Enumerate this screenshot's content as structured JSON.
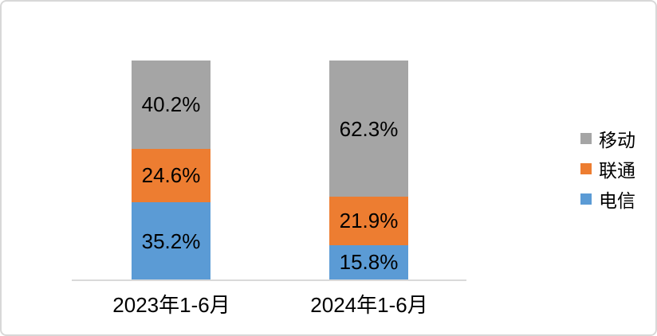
{
  "chart_data": {
    "type": "bar",
    "stacked": true,
    "title": "",
    "xlabel": "",
    "ylabel": "",
    "ylim": [
      0,
      100
    ],
    "value_unit": "%",
    "grid": false,
    "axis_line_color": "#d9d9d9",
    "label_color": "#000000",
    "categories": [
      "2023年1-6月",
      "2024年1-6月"
    ],
    "series": [
      {
        "key": "telecom",
        "name": "电信",
        "color": "#5b9bd5",
        "values": [
          35.2,
          15.8
        ],
        "labels": [
          "35.2%",
          "15.8%"
        ]
      },
      {
        "key": "unicom",
        "name": "联通",
        "color": "#ed7d31",
        "values": [
          24.6,
          21.9
        ],
        "labels": [
          "24.6%",
          "21.9%"
        ]
      },
      {
        "key": "mobile",
        "name": "移动",
        "color": "#a5a5a5",
        "values": [
          40.2,
          62.3
        ],
        "labels": [
          "40.2%",
          "62.3%"
        ]
      }
    ],
    "legend": {
      "position": "right",
      "order_top_to_bottom": [
        "移动",
        "联通",
        "电信"
      ]
    }
  }
}
